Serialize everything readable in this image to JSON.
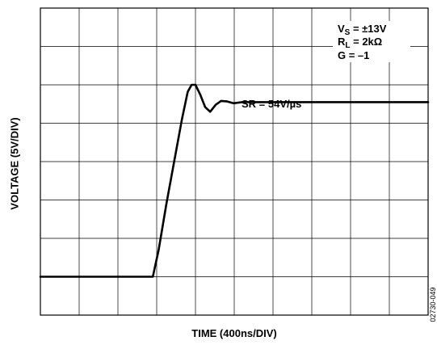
{
  "chart_data": {
    "type": "line",
    "xlabel": "TIME (400ns/DIV)",
    "ylabel": "VOLTAGE (5V/DIV)",
    "x_divisions": 10,
    "y_divisions": 8,
    "x_units_per_div": 400,
    "y_units_per_div": 5,
    "grid": true,
    "series": [
      {
        "points": [
          [
            0,
            1.0
          ],
          [
            2.9,
            1.0
          ],
          [
            3.05,
            1.7
          ],
          [
            3.25,
            2.9
          ],
          [
            3.45,
            4.0
          ],
          [
            3.65,
            5.1
          ],
          [
            3.8,
            5.82
          ],
          [
            3.9,
            6.0
          ],
          [
            4.0,
            6.0
          ],
          [
            4.12,
            5.75
          ],
          [
            4.25,
            5.42
          ],
          [
            4.38,
            5.3
          ],
          [
            4.52,
            5.48
          ],
          [
            4.66,
            5.58
          ],
          [
            4.8,
            5.57
          ],
          [
            4.98,
            5.52
          ],
          [
            5.2,
            5.55
          ],
          [
            6.0,
            5.55
          ],
          [
            10.0,
            5.55
          ]
        ]
      }
    ],
    "annotations": {
      "sr": "SR = 54V/µs",
      "vs_main": "V",
      "vs_sub": "S",
      "vs_rest": " = ±13V",
      "rl_main": "R",
      "rl_sub": "L",
      "rl_rest": " = 2kΩ",
      "g": "G = –1"
    }
  },
  "figure_id": "02730-049"
}
